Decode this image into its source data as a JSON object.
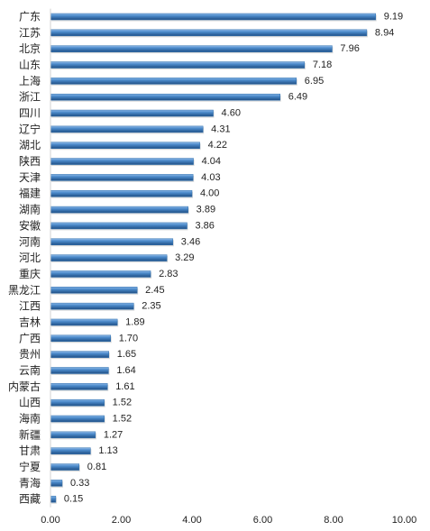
{
  "chart_data": {
    "type": "bar",
    "orientation": "horizontal",
    "categories": [
      "广东",
      "江苏",
      "北京",
      "山东",
      "上海",
      "浙江",
      "四川",
      "辽宁",
      "湖北",
      "陕西",
      "天津",
      "福建",
      "湖南",
      "安徽",
      "河南",
      "河北",
      "重庆",
      "黑龙江",
      "江西",
      "吉林",
      "广西",
      "贵州",
      "云南",
      "内蒙古",
      "山西",
      "海南",
      "新疆",
      "甘肃",
      "宁夏",
      "青海",
      "西藏"
    ],
    "values": [
      9.19,
      8.94,
      7.96,
      7.18,
      6.95,
      6.49,
      4.6,
      4.31,
      4.22,
      4.04,
      4.03,
      4.0,
      3.89,
      3.86,
      3.46,
      3.29,
      2.83,
      2.45,
      2.35,
      1.89,
      1.7,
      1.65,
      1.64,
      1.61,
      1.52,
      1.52,
      1.27,
      1.13,
      0.81,
      0.33,
      0.15
    ],
    "value_labels": [
      "9.19",
      "8.94",
      "7.96",
      "7.18",
      "6.95",
      "6.49",
      "4.60",
      "4.31",
      "4.22",
      "4.04",
      "4.03",
      "4.00",
      "3.89",
      "3.86",
      "3.46",
      "3.29",
      "2.83",
      "2.45",
      "2.35",
      "1.89",
      "1.70",
      "1.65",
      "1.64",
      "1.61",
      "1.52",
      "1.52",
      "1.27",
      "1.13",
      "0.81",
      "0.33",
      "0.15"
    ],
    "x_ticks": [
      "0.00",
      "2.00",
      "4.00",
      "6.00",
      "8.00",
      "10.00"
    ],
    "xlim": [
      0,
      10
    ],
    "title": "",
    "xlabel": "",
    "ylabel": "",
    "grid": false,
    "legend": "none",
    "bar_color": "#2e6fae"
  }
}
